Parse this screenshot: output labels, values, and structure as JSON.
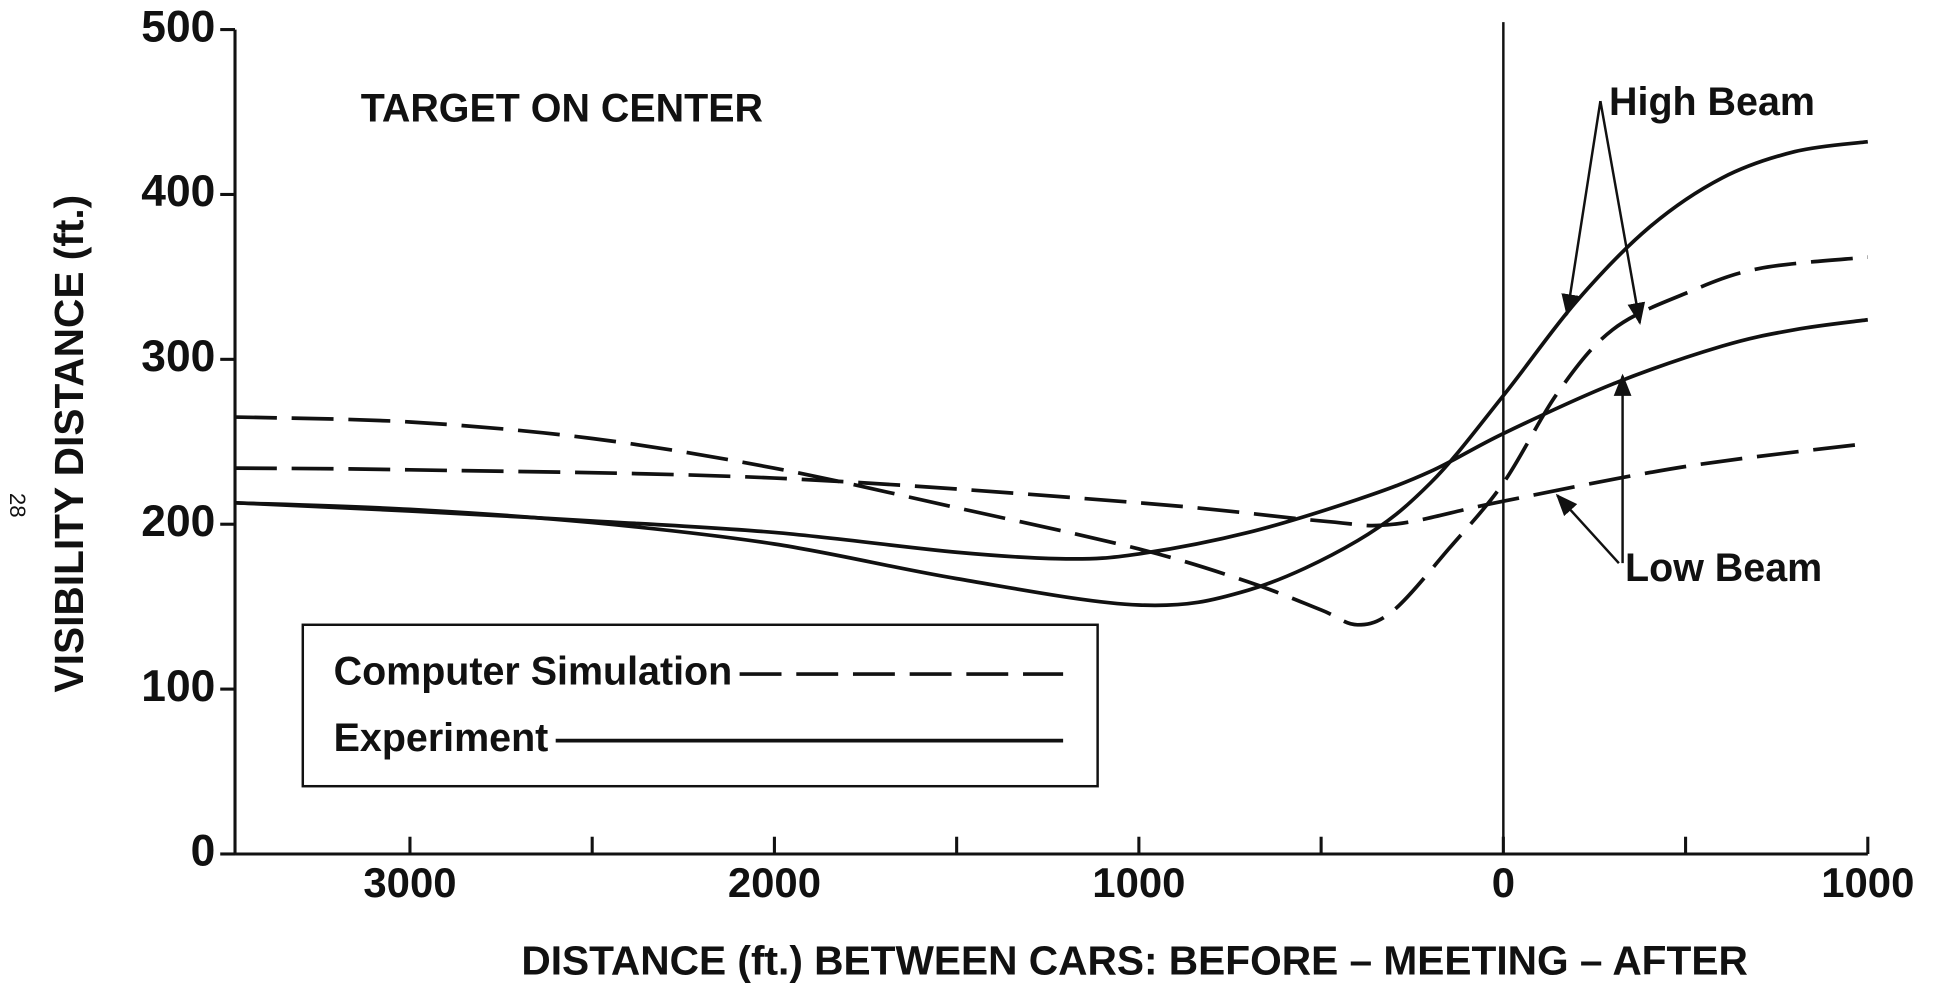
{
  "chart_data": {
    "type": "line",
    "title": "TARGET ON CENTER",
    "x_label": "DISTANCE (ft.) BETWEEN CARS: BEFORE – MEETING – AFTER",
    "y_label": "VISIBILITY DISTANCE (ft.)",
    "page_number": "28",
    "annotations": [
      {
        "text": "High Beam"
      },
      {
        "text": "Low Beam"
      }
    ],
    "legend": [
      {
        "name": "Computer Simulation",
        "dashed": true
      },
      {
        "name": "Experiment",
        "dashed": false
      }
    ],
    "xlim": [
      -3480,
      1000
    ],
    "ylim": [
      0,
      500
    ],
    "xticks": [
      {
        "value": -3000,
        "label": "3000"
      },
      {
        "value": -2000,
        "label": "2000"
      },
      {
        "value": -1000,
        "label": "1000"
      },
      0,
      1000
    ],
    "xminor_ticks": [
      -2500,
      -1500,
      -500,
      500
    ],
    "yticks": [
      0,
      100,
      200,
      300,
      400,
      500
    ],
    "color": "#111111",
    "series": [
      {
        "dashed": false,
        "x": [
          -3480,
          -3000,
          -2500,
          -2000,
          -1500,
          -1000,
          -700,
          -400,
          -200,
          0,
          200,
          400,
          600,
          800,
          1000
        ],
        "values": [
          213,
          209,
          201,
          188,
          167,
          151,
          160,
          190,
          225,
          278,
          335,
          380,
          410,
          426,
          432
        ]
      },
      {
        "dashed": false,
        "x": [
          -3480,
          -3000,
          -2500,
          -2000,
          -1500,
          -1200,
          -1000,
          -700,
          -400,
          -200,
          0,
          300,
          600,
          800,
          1000
        ],
        "values": [
          213,
          208,
          202,
          195,
          183,
          179,
          182,
          195,
          215,
          232,
          255,
          285,
          308,
          318,
          324
        ]
      },
      {
        "dashed": true,
        "x": [
          -3480,
          -3000,
          -2500,
          -2000,
          -1500,
          -1000,
          -700,
          -500,
          -400,
          -300,
          -150,
          0,
          150,
          300,
          500,
          700,
          1000
        ],
        "values": [
          265,
          262,
          252,
          234,
          210,
          185,
          165,
          148,
          139,
          148,
          185,
          225,
          280,
          318,
          340,
          355,
          362
        ]
      },
      {
        "dashed": true,
        "x": [
          -3480,
          -3000,
          -2000,
          -1000,
          -500,
          -300,
          0,
          500,
          1000
        ],
        "values": [
          234,
          233,
          228,
          213,
          202,
          200,
          214,
          235,
          249
        ]
      }
    ]
  }
}
